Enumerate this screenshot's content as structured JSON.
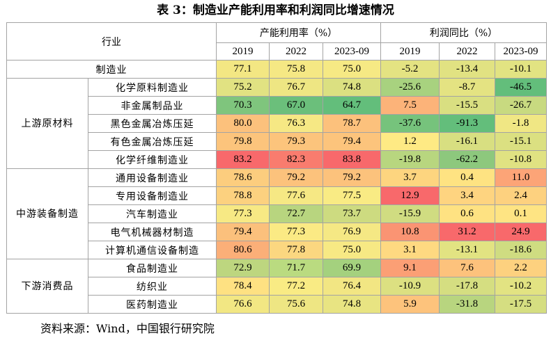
{
  "title": "表 3：制造业产能利用率和利润同比增速情况",
  "header": {
    "industry": "行业",
    "capacity_group": "产能利用率（%）",
    "profit_group": "利润同比（%）",
    "years": [
      "2019",
      "2022",
      "2023-09"
    ]
  },
  "rows": [
    {
      "category": "",
      "industry": "制造业",
      "capacity": [
        "77.1",
        "75.8",
        "75.0"
      ],
      "profit": [
        "-5.2",
        "-13.4",
        "-10.1"
      ]
    },
    {
      "category": "上游原材料",
      "industry": "化学原料制造业",
      "capacity": [
        "75.2",
        "76.7",
        "74.8"
      ],
      "profit": [
        "-25.6",
        "-8.7",
        "-46.5"
      ]
    },
    {
      "category": "上游原材料",
      "industry": "非金属制品业",
      "capacity": [
        "70.3",
        "67.0",
        "64.7"
      ],
      "profit": [
        "7.5",
        "-15.5",
        "-26.7"
      ]
    },
    {
      "category": "上游原材料",
      "industry": "黑色金属冶炼压延",
      "capacity": [
        "80.0",
        "76.3",
        "78.7"
      ],
      "profit": [
        "-37.6",
        "-91.3",
        "-1.8"
      ]
    },
    {
      "category": "上游原材料",
      "industry": "有色金属冶炼压延",
      "capacity": [
        "79.8",
        "79.3",
        "79.4"
      ],
      "profit": [
        "1.2",
        "-16.1",
        "-15.1"
      ]
    },
    {
      "category": "上游原材料",
      "industry": "化学纤维制造业",
      "capacity": [
        "83.2",
        "82.3",
        "83.8"
      ],
      "profit": [
        "-19.8",
        "-62.2",
        "-10.8"
      ]
    },
    {
      "category": "中游装备制造",
      "industry": "通用设备制造业",
      "capacity": [
        "78.6",
        "79.2",
        "79.2"
      ],
      "profit": [
        "3.7",
        "0.4",
        "11.0"
      ]
    },
    {
      "category": "中游装备制造",
      "industry": "专用设备制造业",
      "capacity": [
        "78.8",
        "77.6",
        "77.5"
      ],
      "profit": [
        "12.9",
        "3.4",
        "2.4"
      ]
    },
    {
      "category": "中游装备制造",
      "industry": "汽车制造业",
      "capacity": [
        "77.3",
        "72.7",
        "73.7"
      ],
      "profit": [
        "-15.9",
        "0.6",
        "0.1"
      ]
    },
    {
      "category": "中游装备制造",
      "industry": "电气机械器材制造",
      "capacity": [
        "79.4",
        "77.3",
        "76.9"
      ],
      "profit": [
        "10.8",
        "31.2",
        "24.9"
      ]
    },
    {
      "category": "中游装备制造",
      "industry": "计算机通信设备制造",
      "capacity": [
        "80.6",
        "77.8",
        "75.0"
      ],
      "profit": [
        "3.1",
        "-13.1",
        "-18.6"
      ]
    },
    {
      "category": "下游消费品",
      "industry": "食品制造业",
      "capacity": [
        "72.9",
        "71.7",
        "69.9"
      ],
      "profit": [
        "9.1",
        "7.6",
        "2.2"
      ]
    },
    {
      "category": "下游消费品",
      "industry": "纺织业",
      "capacity": [
        "78.4",
        "77.2",
        "76.4"
      ],
      "profit": [
        "-10.9",
        "-17.8",
        "-10.2"
      ]
    },
    {
      "category": "下游消费品",
      "industry": "医药制造业",
      "capacity": [
        "76.6",
        "75.6",
        "74.8"
      ],
      "profit": [
        "5.9",
        "-31.8",
        "-17.5"
      ]
    }
  ],
  "colors": {
    "capacity": [
      [
        "#f3e783",
        "#f5e884",
        "#f6e984"
      ],
      [
        "#e1e282",
        "#eee683",
        "#dbe081"
      ],
      [
        "#7fc57d",
        "#6bbf7b",
        "#63be7b"
      ],
      [
        "#fcc17c",
        "#f6e884",
        "#fcc17c"
      ],
      [
        "#fcc47c",
        "#fcc47c",
        "#fcc47c"
      ],
      [
        "#f8696b",
        "#f97c6e",
        "#f8696b"
      ],
      [
        "#fccd7e",
        "#fcc27c",
        "#fcc27c"
      ],
      [
        "#fcd17f",
        "#f6e884",
        "#f9eb84"
      ],
      [
        "#f7e984",
        "#b8d57f",
        "#cddb80"
      ],
      [
        "#fbc07c",
        "#fbea84",
        "#f5e884"
      ],
      [
        "#fbaf78",
        "#fbd780",
        "#f7e984"
      ],
      [
        "#bdd67f",
        "#badb80",
        "#a4d17e"
      ],
      [
        "#fee182",
        "#f9eb84",
        "#f2e683"
      ],
      [
        "#f2e783",
        "#eee683",
        "#e8e482"
      ]
    ],
    "profit": [
      [
        "#e4e382",
        "#e1e282",
        "#e2e382"
      ],
      [
        "#a8d27f",
        "#e4e382",
        "#63be7b"
      ],
      [
        "#fcb379",
        "#d9df81",
        "#c8da80"
      ],
      [
        "#76c37c",
        "#63be7b",
        "#f0e784"
      ],
      [
        "#feea84",
        "#d8df81",
        "#dbe081"
      ],
      [
        "#b8d67f",
        "#8dc87d",
        "#e0e282"
      ],
      [
        "#fdd57f",
        "#fee382",
        "#fca477"
      ],
      [
        "#f8696b",
        "#fed480",
        "#fdd17f"
      ],
      [
        "#d0dc81",
        "#fee282",
        "#fee483"
      ],
      [
        "#fa9473",
        "#f8696b",
        "#f8696b"
      ],
      [
        "#fed981",
        "#e2e382",
        "#cfdc81"
      ],
      [
        "#fb9f75",
        "#fdc27c",
        "#fdd17f"
      ],
      [
        "#dce081",
        "#d5de81",
        "#e2e382"
      ],
      [
        "#fdc37c",
        "#b8d57f",
        "#d5de81"
      ]
    ]
  },
  "note": "资料来源：Wind，中国银行研究院"
}
